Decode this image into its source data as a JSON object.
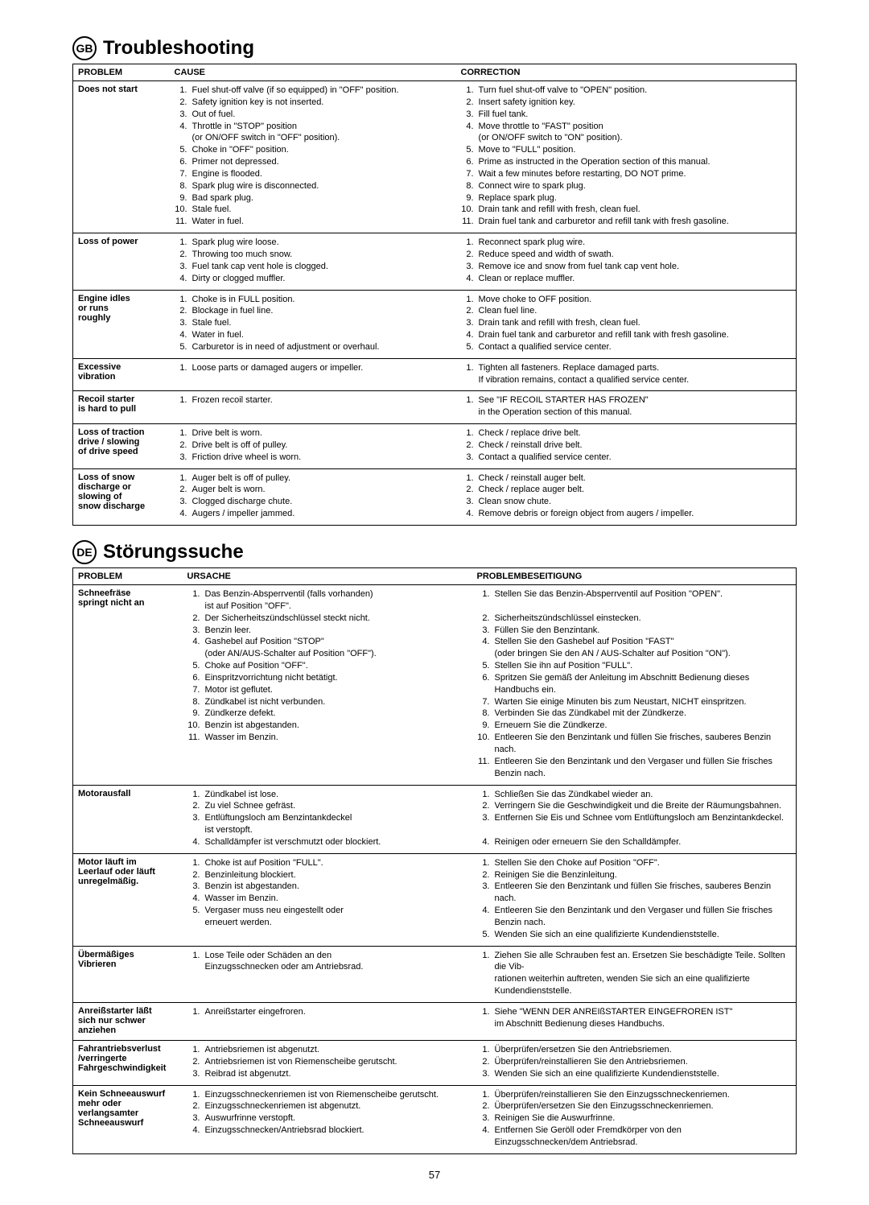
{
  "page_number": "57",
  "gb": {
    "badge": "GB",
    "title": "Troubleshooting",
    "headers": {
      "problem": "PROBLEM",
      "cause": "CAUSE",
      "correction": "CORRECTION"
    },
    "rows": [
      {
        "problem": "Does not start",
        "causes": [
          "Fuel shut-off valve (if so equipped) in \"OFF\" position.",
          "Safety ignition key  is not inserted.",
          "Out of fuel.",
          "Throttle in \"STOP\" position\n(or ON/OFF switch in \"OFF\" position).",
          "Choke in \"OFF\" position.",
          "Primer not depressed.",
          "Engine is flooded.",
          "Spark plug wire is disconnected.",
          "Bad spark plug.",
          "Stale fuel.",
          "Water in fuel."
        ],
        "corrections": [
          "Turn fuel shut-off valve to \"OPEN\" position.",
          "Insert safety ignition key.",
          "Fill fuel tank.",
          "Move throttle to \"FAST\" position\n(or ON/OFF switch to \"ON\" position).",
          "Move to \"FULL\" position.",
          "Prime as instructed in the Operation section of this manual.",
          "Wait a few minutes before restarting, DO NOT prime.",
          "Connect wire to spark plug.",
          "Replace spark plug.",
          "Drain tank and refill with fresh, clean fuel.",
          "Drain fuel tank and carburetor and refill tank with fresh gasoline."
        ]
      },
      {
        "problem": "Loss of power",
        "causes": [
          "Spark plug wire loose.",
          "Throwing too much snow.",
          "Fuel tank cap vent hole is clogged.",
          "Dirty or clogged muffler."
        ],
        "corrections": [
          "Reconnect spark plug wire.",
          "Reduce speed and width of swath.",
          "Remove ice and snow from fuel tank cap vent hole.",
          "Clean or replace muffler."
        ]
      },
      {
        "problem": "Engine idles\nor runs\nroughly",
        "causes": [
          "Choke is in FULL position.",
          "Blockage in fuel line.",
          "Stale fuel.",
          "Water in fuel.",
          "Carburetor is in need of adjustment or overhaul."
        ],
        "corrections": [
          "Move choke to OFF position.",
          "Clean fuel line.",
          "Drain tank and refill with fresh, clean fuel.",
          "Drain fuel tank and carburetor and refill tank with fresh gasoline.",
          "Contact a qualified service center."
        ]
      },
      {
        "problem": "Excessive\nvibration",
        "causes": [
          "Loose parts or damaged augers or impeller."
        ],
        "corrections": [
          "Tighten all fasteners.  Replace damaged parts.\nIf vibration remains, contact a qualified service center."
        ]
      },
      {
        "problem": "Recoil starter\nis hard to pull",
        "causes": [
          "Frozen recoil starter."
        ],
        "corrections": [
          "See \"IF RECOIL STARTER HAS FROZEN\"\nin the Operation section of this manual."
        ]
      },
      {
        "problem": "Loss of traction\ndrive / slowing\nof drive speed",
        "causes": [
          "Drive belt is worn.",
          "Drive belt is off of pulley.",
          "Friction drive wheel is worn."
        ],
        "corrections": [
          "Check / replace drive belt.",
          "Check / reinstall drive belt.",
          "Contact a qualified service center."
        ]
      },
      {
        "problem": "Loss of snow\ndischarge or\nslowing of\nsnow discharge",
        "causes": [
          "Auger belt is off of pulley.",
          "Auger belt is worn.",
          "Clogged discharge chute.",
          "Augers / impeller jammed."
        ],
        "corrections": [
          "Check / reinstall auger belt.",
          "Check / replace auger belt.",
          "Clean snow chute.",
          "Remove debris or foreign object from augers / impeller."
        ]
      }
    ]
  },
  "de": {
    "badge": "DE",
    "title": "Störungssuche",
    "headers": {
      "problem": "PROBLEM",
      "cause": "URSACHE",
      "correction": "PROBLEMBESEITIGUNG"
    },
    "rows": [
      {
        "problem": "Schneefräse\nspringt nicht an",
        "causes": [
          "Das Benzin-Absperrventil (falls vorhanden)\nist auf Position \"OFF\".",
          "Der Sicherheitszündschlüssel steckt nicht.",
          "Benzin leer.",
          "Gashebel auf Position \"STOP\"\n(oder AN/AUS-Schalter auf Position \"OFF\").",
          "Choke auf Position \"OFF\".",
          "Einspritzvorrichtung nicht betätigt.",
          "Motor ist geflutet.",
          "Zündkabel ist nicht verbunden.",
          "Zündkerze defekt.",
          "Benzin ist abgestanden.",
          "Wasser im Benzin."
        ],
        "corrections": [
          "Stellen Sie das Benzin-Absperrventil auf Position \"OPEN\".\n ",
          "Sicherheitszündschlüssel einstecken.",
          "Füllen Sie den Benzintank.",
          "Stellen Sie den Gashebel auf Position \"FAST\"\n(oder bringen Sie den AN / AUS-Schalter auf Position \"ON\").",
          "Stellen Sie ihn auf Position \"FULL\".",
          "Spritzen Sie gemäß der Anleitung im Abschnitt Bedienung dieses Handbuchs ein.",
          "Warten Sie einige Minuten bis zum Neustart, NICHT einspritzen.",
          "Verbinden Sie das Zündkabel mit der Zündkerze.",
          "Erneuern Sie die Zündkerze.",
          "Entleeren Sie den Benzintank und füllen Sie frisches, sauberes Benzin nach.",
          "Entleeren Sie den Benzintank und den Vergaser und füllen Sie frisches Benzin nach."
        ]
      },
      {
        "problem": "Motorausfall",
        "causes": [
          "Zündkabel ist lose.",
          "Zu viel Schnee gefräst.",
          "Entlüftungsloch am Benzintankdeckel\nist verstopft.",
          "Schalldämpfer ist verschmutzt oder blockiert."
        ],
        "corrections": [
          "Schließen Sie das Zündkabel wieder an.",
          "Verringern Sie die Geschwindigkeit und die Breite der Räumungsbahnen.",
          "Entfernen Sie Eis und Schnee vom Entlüftungsloch am Benzintankdeckel.\n ",
          "Reinigen oder erneuern Sie den Schalldämpfer."
        ]
      },
      {
        "problem": "Motor läuft im\nLeerlauf oder läuft\nunregelmäßig.",
        "causes": [
          "Choke ist auf Position \"FULL\".",
          "Benzinleitung blockiert.",
          "Benzin ist abgestanden.",
          "Wasser im Benzin.",
          "Vergaser muss neu eingestellt oder\nerneuert werden."
        ],
        "corrections": [
          "Stellen Sie den Choke auf Position \"OFF\".",
          "Reinigen Sie die Benzinleitung.",
          "Entleeren Sie den Benzintank und füllen Sie frisches, sauberes Benzin nach.",
          "Entleeren Sie den Benzintank und den Vergaser und füllen Sie frisches Benzin nach.",
          "Wenden Sie sich an eine qualifizierte Kundendienststelle."
        ]
      },
      {
        "problem": "Übermäßiges\nVibrieren",
        "causes": [
          "Lose Teile oder Schäden an den\nEinzugsschnecken oder am Antriebsrad."
        ],
        "corrections": [
          "Ziehen Sie alle Schrauben fest an.  Ersetzen Sie beschädigte Teile.  Sollten die Vib-\nrationen weiterhin auftreten, wenden Sie sich an eine qualifizierte Kundendienststelle."
        ]
      },
      {
        "problem": "Anreißstarter läßt\nsich nur schwer\nanziehen",
        "causes": [
          "Anreißstarter eingefroren."
        ],
        "corrections": [
          "Siehe \"WENN DER ANREIßSTARTER EINGEFROREN IST\"\nim Abschnitt Bedienung dieses Handbuchs."
        ]
      },
      {
        "problem": "Fahrantriebsverlust\n/verringerte\nFahrgeschwindigkeit",
        "wide": true,
        "causes": [
          "Antriebsriemen ist abgenutzt.",
          "Antriebsriemen ist von Riemenscheibe gerutscht.",
          "Reibrad ist abgenutzt."
        ],
        "corrections": [
          "Überprüfen/ersetzen Sie den Antriebsriemen.",
          "Überprüfen/reinstallieren Sie den Antriebsriemen.",
          "Wenden Sie sich an eine qualifizierte Kundendienststelle."
        ]
      },
      {
        "problem": "Kein Schneeauswurf\nmehr oder\nverlangsamter\nSchneeauswurf",
        "wide": true,
        "causes": [
          "Einzugsschneckenriemen ist von Riemenscheibe gerutscht.",
          "Einzugsschneckenriemen ist abgenutzt.",
          "Auswurfrinne verstopft.",
          "Einzugsschnecken/Antriebsrad blockiert."
        ],
        "corrections": [
          "Überprüfen/reinstallieren Sie den Einzugsschneckenriemen.",
          "Überprüfen/ersetzen Sie den Einzugsschneckenriemen.",
          "Reinigen Sie die Auswurfrinne.",
          "Entfernen Sie Geröll oder Fremdkörper von den\nEinzugsschnecken/dem Antriebsrad."
        ]
      }
    ]
  }
}
